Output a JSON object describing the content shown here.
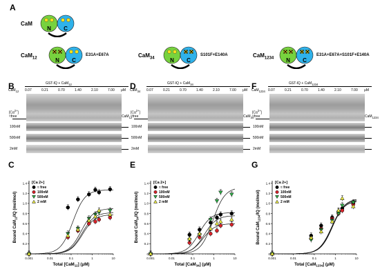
{
  "panel_letters": {
    "a": "A",
    "b": "B",
    "c": "C",
    "d": "D",
    "e": "E",
    "f": "F",
    "g": "G"
  },
  "cam_variants": [
    {
      "name": "CaM",
      "sub": "",
      "mutations": "",
      "n_lobe": "N",
      "c_lobe": "C",
      "n_crossed": false,
      "c_crossed": false
    },
    {
      "name": "CaM",
      "sub": "12",
      "mutations": "E31A+E67A",
      "n_lobe": "N",
      "c_lobe": "C",
      "n_crossed": true,
      "c_crossed": false
    },
    {
      "name": "CaM",
      "sub": "34",
      "mutations": "S101F+E140A",
      "n_lobe": "N",
      "c_lobe": "C",
      "n_crossed": false,
      "c_crossed": true
    },
    {
      "name": "CaM",
      "sub": "1234",
      "mutations": "E31A+E67A+S101F+E140A",
      "n_lobe": "N",
      "c_lobe": "C",
      "n_crossed": true,
      "c_crossed": true
    }
  ],
  "colors": {
    "n_lobe": "#77d23e",
    "c_lobe": "#2fb2ea",
    "dot": "#f4e11c",
    "free": "#000000",
    "nm100": "#d8242b",
    "nm500": "#31b24a",
    "mm2": "#eeee44"
  },
  "gels": [
    {
      "header": "GST-IQ + CaM",
      "header_sub": "12",
      "cam_label": "CaM",
      "cam_sub": "12",
      "concentrations": [
        "0.07",
        "0.21",
        "0.70",
        "1.40",
        "2.10",
        "7.00"
      ],
      "unit": "μM",
      "ca_label": "[Ca",
      "ca_sup": "2+",
      "ca_close": "]",
      "free_label": "≈free",
      "band_label": "CaM",
      "band_sub": "12",
      "conditions": [
        "100nM",
        "500nM",
        "2mM"
      ]
    },
    {
      "header": "GST-IQ + CaM",
      "header_sub": "34",
      "cam_label": "CaM",
      "cam_sub": "34",
      "concentrations": [
        "0.07",
        "0.21",
        "0.70",
        "1.40",
        "2.10",
        "7.00"
      ],
      "unit": "μM",
      "ca_label": "[Ca",
      "ca_sup": "2+",
      "ca_close": "]",
      "free_label": "≈free",
      "band_label": "CaM",
      "band_sub": "34",
      "conditions": [
        "100nM",
        "500nM",
        "2mM"
      ]
    },
    {
      "header": "GST-IQ + CaM",
      "header_sub": "1234",
      "cam_label": "CaM",
      "cam_sub": "1234",
      "concentrations": [
        "0.07",
        "0.21",
        "0.70",
        "1.40",
        "2.10",
        "7.00"
      ],
      "unit": "μM",
      "ca_label": "[Ca",
      "ca_sup": "2+",
      "ca_close": "]",
      "free_label": "≈free",
      "band_label": "CaM",
      "band_sub": "1234",
      "conditions": [
        "100nM",
        "500nM",
        "2mM"
      ]
    }
  ],
  "chart_data": [
    {
      "type": "scatter",
      "panel": "C",
      "ylabel_pre": "Bound CaM",
      "ylabel_sub": "12",
      "ylabel_post": "/IQ (mol/mol)",
      "xlabel_pre": "Total [CaM",
      "xlabel_sub": "12",
      "xlabel_post": "] (μM)",
      "legend_title": "[Ca 2+]",
      "legend_entries": [
        "≈ free",
        "100nM",
        "500nM",
        "2 mM"
      ],
      "x_ticks": [
        "0.001",
        "0.01",
        "0.1",
        "1",
        "10"
      ],
      "y_ticks": [
        "0",
        "0.2",
        "0.4",
        "0.6",
        "0.8",
        "1.0",
        "1.2",
        "1.4"
      ],
      "xlim": [
        0.001,
        10
      ],
      "ylim": [
        0,
        1.45
      ],
      "xscale": "log",
      "series": [
        {
          "key": "free",
          "shape": "circle",
          "fit": [
            1.27,
            0.12,
            1.5
          ],
          "x": [
            0.001,
            0.07,
            0.21,
            0.7,
            1.4,
            2.1,
            7.0
          ],
          "y": [
            0,
            0.92,
            1.08,
            1.18,
            1.27,
            1.22,
            1.28
          ]
        },
        {
          "key": "nm100",
          "shape": "circle",
          "fit": [
            0.78,
            0.35,
            1.5
          ],
          "x": [
            0.001,
            0.07,
            0.21,
            0.7,
            1.4,
            2.1,
            7.0
          ],
          "y": [
            0,
            0.33,
            0.46,
            0.6,
            0.64,
            0.68,
            0.72
          ]
        },
        {
          "key": "nm500",
          "shape": "tri-down",
          "fit": [
            0.9,
            0.3,
            1.5
          ],
          "x": [
            0.001,
            0.07,
            0.21,
            0.7,
            1.4,
            2.1,
            7.0
          ],
          "y": [
            0,
            0.4,
            0.5,
            0.7,
            0.78,
            0.82,
            0.86
          ]
        },
        {
          "key": "mm2",
          "shape": "tri-up",
          "fit": [
            0.82,
            0.33,
            1.5
          ],
          "x": [
            0.001,
            0.07,
            0.21,
            0.7,
            1.4,
            2.1,
            7.0
          ],
          "y": [
            0,
            0.36,
            0.48,
            0.66,
            0.74,
            0.86,
            0.78
          ]
        }
      ]
    },
    {
      "type": "scatter",
      "panel": "E",
      "ylabel_pre": "Bound CaM",
      "ylabel_sub": "34",
      "ylabel_post": "/IQ (mol/mol)",
      "xlabel_pre": "Total [CaM",
      "xlabel_sub": "34",
      "xlabel_post": "] (μM)",
      "legend_title": "[Ca 2+]",
      "legend_entries": [
        "≈ free",
        "100nM",
        "500nM",
        "2 mM"
      ],
      "x_ticks": [
        "0.001",
        "0.01",
        "0.1",
        "1",
        "10"
      ],
      "y_ticks": [
        "0",
        "0.2",
        "0.4",
        "0.6",
        "0.8",
        "1.0",
        "1.2",
        "1.4"
      ],
      "xlim": [
        0.001,
        10
      ],
      "ylim": [
        0,
        1.45
      ],
      "xscale": "log",
      "series": [
        {
          "key": "free",
          "shape": "circle",
          "fit": [
            0.82,
            0.2,
            1.5
          ],
          "x": [
            0.001,
            0.07,
            0.21,
            0.7,
            1.4,
            2.1,
            7.0
          ],
          "y": [
            0,
            0.38,
            0.48,
            0.62,
            0.72,
            0.78,
            0.8
          ]
        },
        {
          "key": "nm100",
          "shape": "circle",
          "fit": [
            0.6,
            0.3,
            1.5
          ],
          "x": [
            0.001,
            0.07,
            0.21,
            0.7,
            1.4,
            2.1,
            7.0
          ],
          "y": [
            0,
            0.22,
            0.33,
            0.4,
            0.46,
            0.56,
            0.58
          ]
        },
        {
          "key": "nm500",
          "shape": "tri-down",
          "fit": [
            1.32,
            0.9,
            1.5
          ],
          "x": [
            0.001,
            0.07,
            0.21,
            0.7,
            1.4,
            2.1,
            7.0
          ],
          "y": [
            0,
            0.28,
            0.38,
            0.68,
            1.05,
            1.22,
            1.18
          ]
        },
        {
          "key": "mm2",
          "shape": "tri-up",
          "fit": [
            0.76,
            0.35,
            1.5
          ],
          "x": [
            0.001,
            0.07,
            0.21,
            0.7,
            1.4,
            2.1,
            7.0
          ],
          "y": [
            0,
            0.3,
            0.4,
            0.5,
            0.6,
            0.64,
            0.68
          ]
        }
      ]
    },
    {
      "type": "scatter",
      "panel": "G",
      "ylabel_pre": "Bound CaM",
      "ylabel_sub": "1234",
      "ylabel_post": "/IQ (mol/mol)",
      "xlabel_pre": "Total [CaM",
      "xlabel_sub": "1234",
      "xlabel_post": "] (μM)",
      "legend_title": "[Ca 2+]",
      "legend_entries": [
        "≈ free",
        "100nM",
        "500nM",
        "2 mM"
      ],
      "x_ticks": [
        "0.001",
        "0.01",
        "0.1",
        "1",
        "10"
      ],
      "y_ticks": [
        "0",
        "0.2",
        "0.4",
        "0.6",
        "0.8",
        "1.0",
        "1.2",
        "1.4"
      ],
      "xlim": [
        0.001,
        10
      ],
      "ylim": [
        0,
        1.45
      ],
      "xscale": "log",
      "series": [
        {
          "key": "free",
          "shape": "circle",
          "fit": [
            1.05,
            0.65,
            1.5
          ],
          "x": [
            0.001,
            0.07,
            0.21,
            0.7,
            1.4,
            2.1,
            7.0
          ],
          "y": [
            0,
            0.36,
            0.56,
            0.72,
            0.84,
            0.9,
            1.0
          ]
        },
        {
          "key": "nm100",
          "shape": "circle",
          "fit": [
            1.08,
            0.7,
            1.5
          ],
          "x": [
            0.001,
            0.07,
            0.21,
            0.7,
            1.4,
            2.1,
            7.0
          ],
          "y": [
            0,
            0.3,
            0.5,
            0.7,
            0.8,
            0.86,
            0.98
          ]
        },
        {
          "key": "nm500",
          "shape": "tri-down",
          "fit": [
            1.1,
            0.75,
            1.5
          ],
          "x": [
            0.001,
            0.07,
            0.21,
            0.7,
            1.4,
            2.1,
            7.0
          ],
          "y": [
            0,
            0.28,
            0.48,
            0.66,
            0.8,
            0.96,
            1.02
          ]
        },
        {
          "key": "mm2",
          "shape": "tri-up",
          "fit": [
            1.06,
            0.7,
            1.5
          ],
          "x": [
            0.001,
            0.07,
            0.21,
            0.7,
            1.4,
            2.1,
            7.0
          ],
          "y": [
            0,
            0.32,
            0.44,
            0.64,
            0.86,
            1.1,
            0.94
          ]
        }
      ]
    }
  ]
}
